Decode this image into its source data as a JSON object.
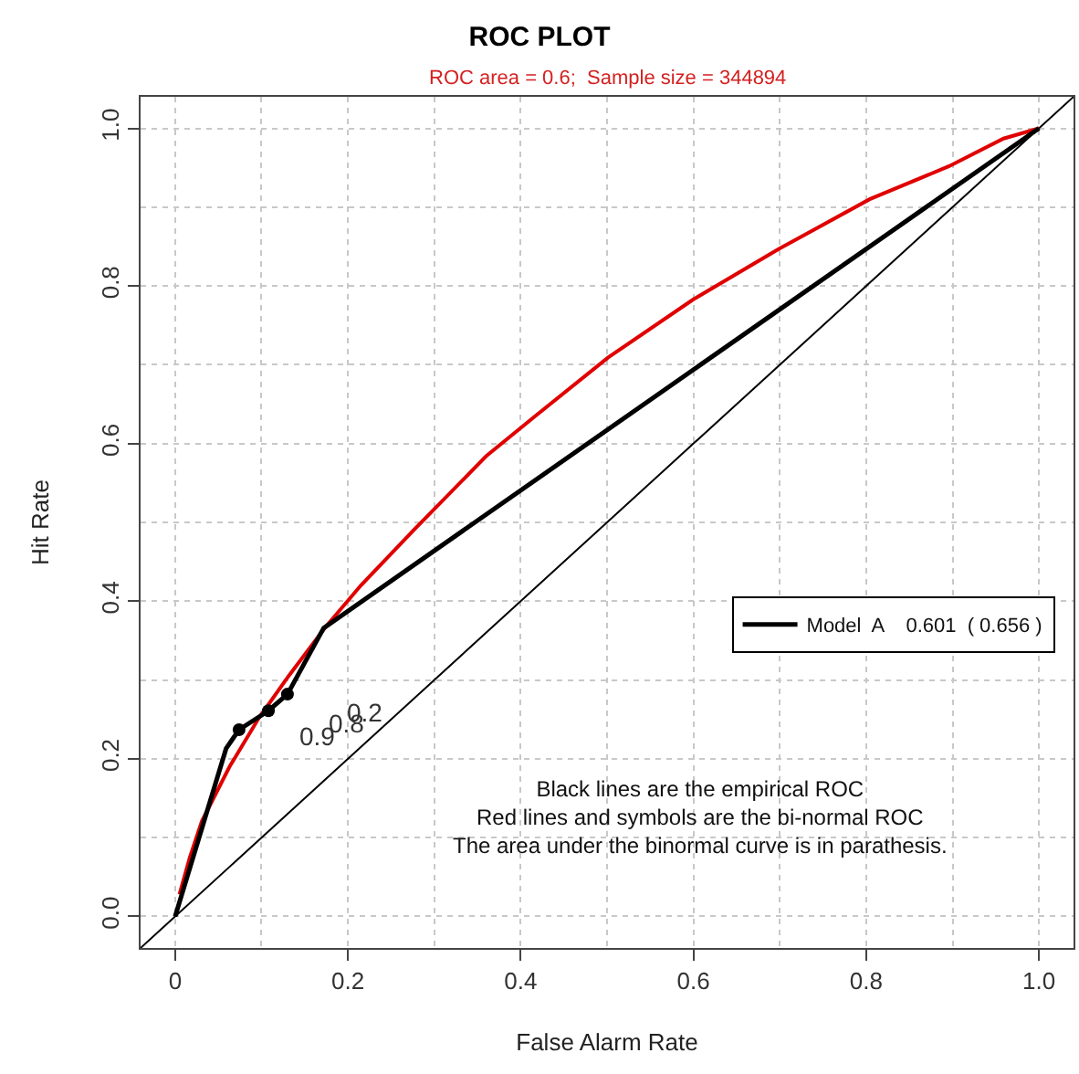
{
  "chart_data": {
    "type": "line",
    "title": "ROC PLOT",
    "subtitle": "ROC area = 0.6;  Sample size = 344894",
    "xlabel": "False Alarm Rate",
    "ylabel": "Hit Rate",
    "xlim": [
      -0.04,
      1.04
    ],
    "ylim": [
      -0.04,
      1.04
    ],
    "xticks": [
      0,
      {
        "value": 0.2,
        "label": "0.2"
      },
      {
        "value": 0.4,
        "label": "0.4"
      },
      {
        "value": 0.6,
        "label": "0.6"
      },
      {
        "value": 0.8,
        "label": "0.8"
      },
      {
        "value": 1,
        "label": "1.0"
      }
    ],
    "yticks": [
      {
        "value": 0,
        "label": "0.0"
      },
      {
        "value": 0.2,
        "label": "0.2"
      },
      {
        "value": 0.4,
        "label": "0.4"
      },
      {
        "value": 0.6,
        "label": "0.6"
      },
      {
        "value": 0.8,
        "label": "0.8"
      },
      {
        "value": 1,
        "label": "1.0"
      }
    ],
    "grid": true,
    "legend": "right",
    "line_style": "solid",
    "series": [
      {
        "color": "#000000",
        "x": [
          -0.04,
          1.04
        ],
        "values": [
          -0.04,
          1.04
        ]
      },
      {
        "color": "#e00000",
        "x": [
          0.005,
          0.017,
          0.031,
          0.063,
          0.097,
          0.132,
          0.174,
          0.215,
          0.276,
          0.36,
          0.417,
          0.501,
          0.6,
          0.699,
          0.804,
          0.896,
          0.959,
          1
        ],
        "values": [
          0.028,
          0.075,
          0.121,
          0.19,
          0.252,
          0.306,
          0.367,
          0.42,
          0.49,
          0.584,
          0.635,
          0.709,
          0.783,
          0.847,
          0.91,
          0.952,
          0.987,
          1
        ]
      },
      {
        "name": "Model  A    0.601  ( 0.656 )",
        "color": "#000000",
        "x": [
          0,
          0.059,
          0.074,
          0.108,
          0.13,
          0.172,
          1
        ],
        "values": [
          0,
          0.213,
          0.237,
          0.261,
          0.282,
          0.366,
          1
        ]
      },
      {
        "type": "scatter",
        "marker": "circle",
        "color": "#000000",
        "x": [
          0.074,
          0.108,
          0.13
        ],
        "values": [
          0.237,
          0.261,
          0.282
        ]
      }
    ],
    "annotations": [
      "0.9",
      "0.8",
      "0.2",
      "Black lines are the empirical ROC\nRed lines and symbols are the bi-normal ROC\nThe area under the binormal curve is in parathesis."
    ]
  }
}
